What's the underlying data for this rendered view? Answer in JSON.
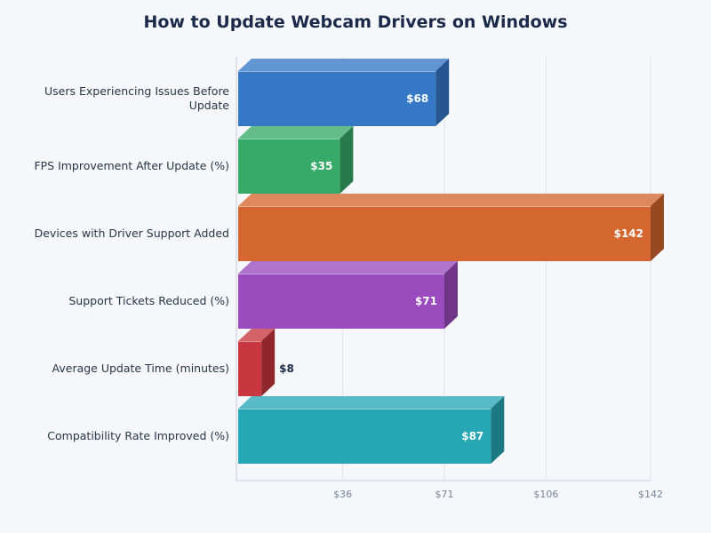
{
  "chart_data": {
    "type": "bar",
    "orientation": "horizontal",
    "style": "3d",
    "title": "How to Update Webcam Drivers on Windows",
    "categories": [
      "Users Experiencing Issues Before Update",
      "FPS Improvement After Update (%)",
      "Devices with Driver Support Added",
      "Support Tickets Reduced (%)",
      "Average Update Time (minutes)",
      "Compatibility Rate Improved (%)"
    ],
    "values": [
      68,
      35,
      142,
      71,
      8,
      87
    ],
    "value_labels": [
      "$68",
      "$35",
      "$142",
      "$71",
      "$8",
      "$87"
    ],
    "colors": [
      "#3478c6",
      "#36ab68",
      "#d4662f",
      "#9a4bbd",
      "#c8363f",
      "#27a7b6"
    ],
    "xlim": [
      0,
      142
    ],
    "xticks": [
      36,
      71,
      106,
      142
    ],
    "xtick_labels": [
      "$36",
      "$71",
      "$106",
      "$142"
    ],
    "grid": true,
    "legend": "none",
    "xlabel": "",
    "ylabel": ""
  }
}
